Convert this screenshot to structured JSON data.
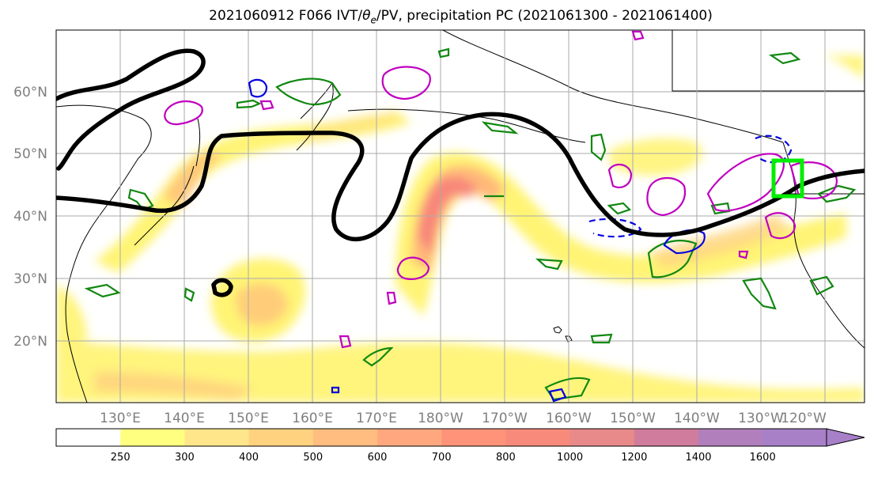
{
  "title": {
    "prefix": "2021060912 F066 IVT/",
    "theta": "θ",
    "theta_sub": "e",
    "suffix": "/PV, precipitation PC (2021061300 - 2021061400)"
  },
  "map": {
    "lat_labels": [
      "60°N",
      "50°N",
      "40°N",
      "30°N",
      "20°N"
    ],
    "lon_labels": [
      "130°E",
      "140°E",
      "150°E",
      "160°E",
      "170°E",
      "180°W",
      "170°W",
      "160°W",
      "150°W",
      "140°W",
      "130°W",
      "120°W"
    ],
    "lat_ticks": [
      60,
      50,
      40,
      30,
      20
    ],
    "lon_ticks": [
      130,
      140,
      150,
      160,
      170,
      180,
      190,
      200,
      210,
      220,
      230,
      240
    ],
    "extent": {
      "lon_min": 120,
      "lon_max": 246.5,
      "lat_min": 10,
      "lat_max": 70
    },
    "colors": {
      "theta_contour": "#000000",
      "pv_positive": "#c000c0",
      "pv_negative": "#0000e0",
      "precip_pc": "#118811",
      "highlight_box": "#00ee00",
      "grid": "#aaaaaa"
    }
  },
  "colorbar": {
    "labels": [
      "250",
      "300",
      "400",
      "500",
      "600",
      "700",
      "800",
      "1000",
      "1200",
      "1400",
      "1600"
    ],
    "colors": [
      "#ffffff",
      "#ffff80",
      "#ffe68a",
      "#ffd27f",
      "#ffbd80",
      "#ffa87f",
      "#ff937a",
      "#f78a7a",
      "#e88a8a",
      "#d07c9c",
      "#b27fbd",
      "#a780c8"
    ]
  }
}
